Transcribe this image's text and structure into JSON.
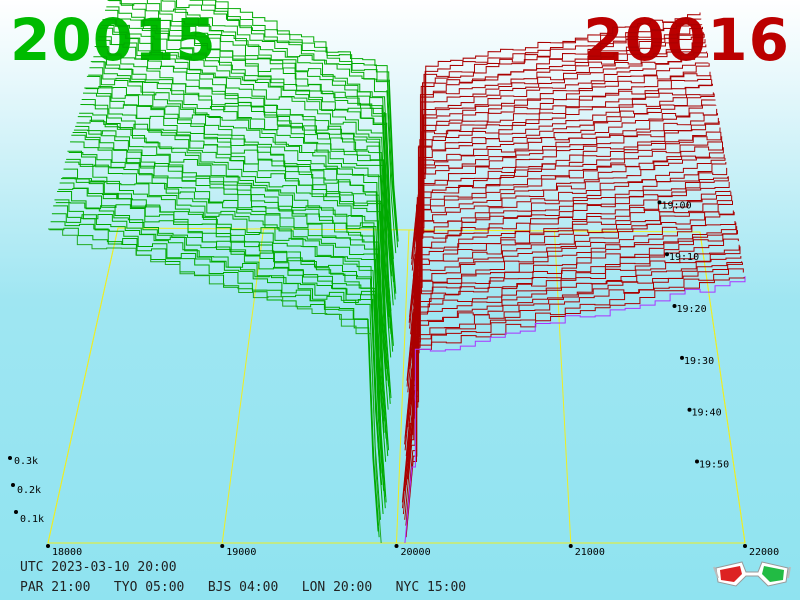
{
  "header": {
    "bid": "20015",
    "ask": "20016"
  },
  "chart_data": {
    "type": "line",
    "view": "3d-waterfall",
    "x_axis": {
      "ticks": [
        "18000",
        "19000",
        "20000",
        "21000",
        "22000"
      ],
      "range": [
        18000,
        22000
      ]
    },
    "y_axis": {
      "ticks": [
        "0.1k",
        "0.2k",
        "0.3k"
      ],
      "range": [
        0,
        350
      ]
    },
    "time_axis": {
      "ticks": [
        "19:00",
        "19:10",
        "19:20",
        "19:30",
        "19:40",
        "19:50"
      ],
      "range": [
        "18:56",
        "19:56"
      ]
    },
    "series": [
      {
        "side": "bid",
        "color": "#00aa00",
        "cum_left": 330,
        "cum_mid": 220,
        "mid_price": 19850
      },
      {
        "side": "ask",
        "color": "#aa0000",
        "cum_right": 330,
        "cum_mid": 200,
        "mid_price": 20100
      }
    ],
    "slice_count": 55
  },
  "footer": {
    "utc": "UTC 2023-03-10 20:00",
    "zones": "PAR 21:00   TYO 05:00   BJS 04:00   LON 20:00   NYC 15:00"
  },
  "glasses_icon": "3d-glasses-icon",
  "colors": {
    "bid": "#00bb00",
    "ask": "#bb0000",
    "frame": "#eeee22",
    "latest": "#aa33ff"
  }
}
